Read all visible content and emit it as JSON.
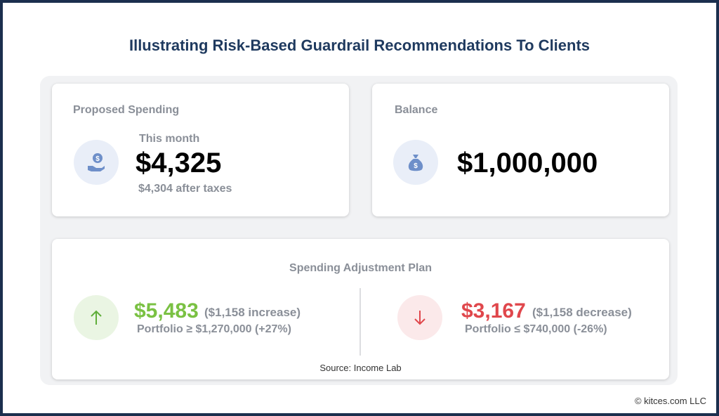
{
  "header": {
    "title": "Illustrating Risk-Based Guardrail Recommendations To Clients"
  },
  "spending_card": {
    "label": "Proposed Spending",
    "period": "This month",
    "amount": "$4,325",
    "after_taxes": "$4,304 after taxes"
  },
  "balance_card": {
    "label": "Balance",
    "amount": "$1,000,000"
  },
  "adjustment_plan": {
    "title": "Spending Adjustment Plan",
    "increase": {
      "amount": "$5,483",
      "change": "($1,158 increase)",
      "trigger": "Portfolio ≥ $1,270,000 (+27%)"
    },
    "decrease": {
      "amount": "$3,167",
      "change": "($1,158 decrease)",
      "trigger": "Portfolio ≤ $740,000 (-26%)"
    },
    "source": "Source: Income Lab"
  },
  "footer": {
    "copyright": "© kitces.com LLC"
  }
}
